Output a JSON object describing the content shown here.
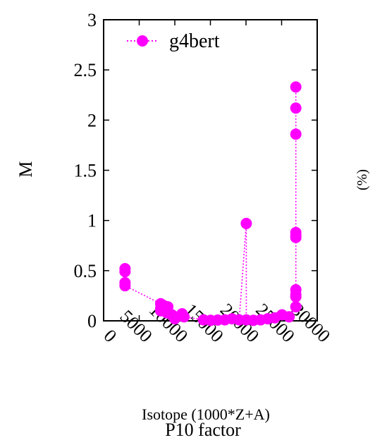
{
  "chart_data": {
    "type": "scatter",
    "xlabel": "Isotope (1000*Z+A)",
    "ylabel": "M",
    "overlay_title": "P10 factor",
    "xlim": [
      0,
      30000
    ],
    "ylim": [
      0,
      3
    ],
    "x_ticks": [
      "0",
      "5000",
      "10000",
      "15000",
      "20000",
      "25000",
      "30000"
    ],
    "y_ticks": [
      "0",
      "0.5",
      "1",
      "1.5",
      "2",
      "2.5",
      "3"
    ],
    "x_tick_values": [
      0,
      5000,
      10000,
      15000,
      20000,
      25000,
      30000
    ],
    "y_tick_values": [
      0,
      0.5,
      1,
      1.5,
      2,
      2.5,
      3
    ],
    "legend_position": "top-left",
    "grid": false,
    "series": [
      {
        "name": "g4bert",
        "color": "#ff00ff",
        "line_style": "dotted",
        "marker": "filled-circle",
        "points": [
          [
            3007,
            0.52
          ],
          [
            3007,
            0.49
          ],
          [
            3007,
            0.38
          ],
          [
            3007,
            0.35
          ],
          [
            8016,
            0.17
          ],
          [
            8016,
            0.12
          ],
          [
            8016,
            0.1
          ],
          [
            8500,
            0.15
          ],
          [
            8900,
            0.08
          ],
          [
            9019,
            0.14
          ],
          [
            9600,
            0.06
          ],
          [
            10000,
            0.02
          ],
          [
            10000,
            0.04
          ],
          [
            11023,
            0.07
          ],
          [
            11300,
            0.04
          ],
          [
            14028,
            0.01
          ],
          [
            15031,
            0.005
          ],
          [
            16032,
            0.008
          ],
          [
            17035,
            0.01
          ],
          [
            18040,
            0.02
          ],
          [
            19039,
            0.01
          ],
          [
            20040,
            0.97
          ],
          [
            20040,
            0.01
          ],
          [
            21045,
            0.005
          ],
          [
            22048,
            0.01
          ],
          [
            23051,
            0.02
          ],
          [
            24052,
            0.03
          ],
          [
            25055,
            0.06
          ],
          [
            26056,
            0.04
          ],
          [
            27000,
            0.14
          ],
          [
            27000,
            0.24
          ],
          [
            27000,
            0.26
          ],
          [
            27000,
            0.31
          ],
          [
            27000,
            0.83
          ],
          [
            27000,
            0.85
          ],
          [
            27000,
            0.88
          ],
          [
            27000,
            1.86
          ],
          [
            27000,
            2.12
          ],
          [
            27000,
            2.33
          ]
        ]
      }
    ]
  }
}
